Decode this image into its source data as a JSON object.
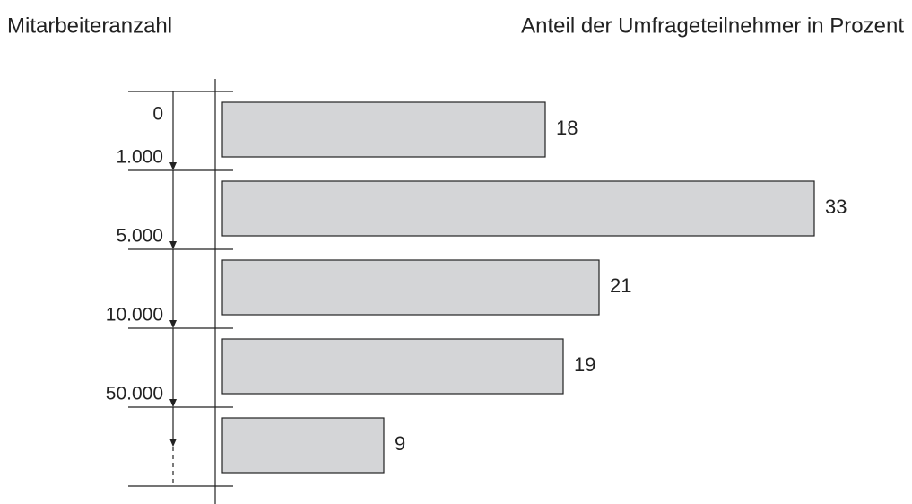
{
  "chart_data": {
    "type": "bar",
    "orientation": "horizontal",
    "title_left": "Mitarbeiteranzahl",
    "title_right": "Anteil der Umfrageteilnehmer in Prozent",
    "boundaries": [
      0,
      {
        "value": 1000,
        "label": "1.000"
      },
      {
        "value": 5000,
        "label": "5.000"
      },
      {
        "value": 10000,
        "label": "10.000"
      },
      {
        "value": 50000,
        "label": "50.000"
      }
    ],
    "values": [
      18,
      33,
      21,
      19,
      9
    ],
    "color": "#d4d5d7"
  }
}
